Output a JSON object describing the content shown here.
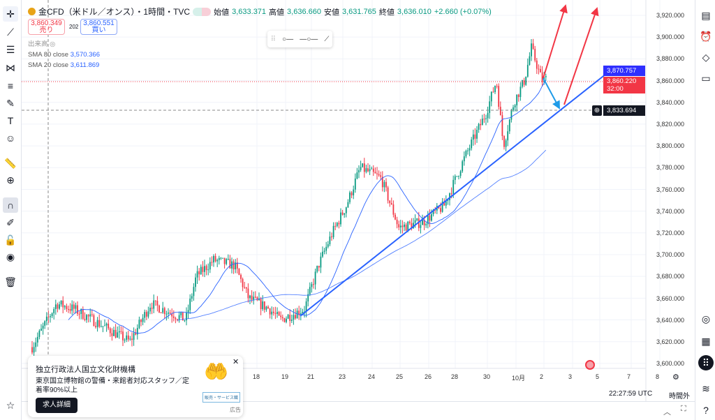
{
  "legend": {
    "symbol": "金CFD（米ドル／オンス）・1時間・TVC",
    "open_label": "始値",
    "open": "3,633.371",
    "high_label": "高値",
    "high": "3,636.660",
    "low_label": "安値",
    "low": "3,631.765",
    "close_label": "終値",
    "close": "3,636.010",
    "change": "+2.660 (+0.07%)"
  },
  "trade": {
    "sell_price": "3,860.349",
    "sell_label": "売り",
    "spread": "202",
    "buy_price": "3,860.551",
    "buy_label": "買い"
  },
  "volume_label": "出来高",
  "indicators": [
    {
      "name": "SMA 80 close",
      "value": "3,570.366"
    },
    {
      "name": "SMA 20 close",
      "value": "3,611.869"
    }
  ],
  "price_axis": {
    "ticks": [
      "3,920.000",
      "3,900.000",
      "3,880.000",
      "3,860.000",
      "3,840.000",
      "3,820.000",
      "3,800.000",
      "3,780.000",
      "3,760.000",
      "3,740.000",
      "3,720.000",
      "3,700.000",
      "3,680.000",
      "3,660.000",
      "3,640.000",
      "3,620.000",
      "3,600.000"
    ],
    "sma_label": "3,870.757",
    "last_price": "3,860.220",
    "countdown": "32:00",
    "crosshair_price": "3,833.694"
  },
  "time_axis": [
    "18",
    "19",
    "21",
    "23",
    "24",
    "25",
    "26",
    "28",
    "30",
    "10月",
    "2",
    "3",
    "5",
    "7",
    "8"
  ],
  "status": {
    "time": "22:27:59 UTC",
    "session": "時間外"
  },
  "ad": {
    "title": "独立行政法人国立文化財機構",
    "body": "東京国立博物館の警備・来館者対応スタッフ／定着率90%以上",
    "button": "求人詳細",
    "tag": "広告",
    "badge": "販売・サービス職"
  },
  "colors": {
    "up": "#089981",
    "down": "#f23645",
    "sma": "#2962ff",
    "trend": "#2962ff",
    "arrow_red": "#f23645",
    "arrow_blue": "#1e9be8"
  },
  "chart_data": {
    "type": "candlestick",
    "price_path": [
      [
        0,
        3615
      ],
      [
        35,
        3655
      ],
      [
        60,
        3650
      ],
      [
        140,
        3620
      ],
      [
        170,
        3655
      ],
      [
        220,
        3640
      ],
      [
        235,
        3680
      ],
      [
        260,
        3695
      ],
      [
        290,
        3690
      ],
      [
        310,
        3660
      ],
      [
        340,
        3650
      ],
      [
        355,
        3640
      ],
      [
        390,
        3650
      ],
      [
        410,
        3690
      ],
      [
        430,
        3720
      ],
      [
        450,
        3745
      ],
      [
        470,
        3780
      ],
      [
        500,
        3770
      ],
      [
        525,
        3725
      ],
      [
        560,
        3730
      ],
      [
        590,
        3745
      ],
      [
        620,
        3790
      ],
      [
        650,
        3830
      ],
      [
        665,
        3860
      ],
      [
        675,
        3800
      ],
      [
        690,
        3840
      ],
      [
        705,
        3860
      ],
      [
        715,
        3890
      ],
      [
        730,
        3860
      ],
      [
        738,
        3862
      ]
    ],
    "ylim": [
      3590,
      3930
    ]
  }
}
